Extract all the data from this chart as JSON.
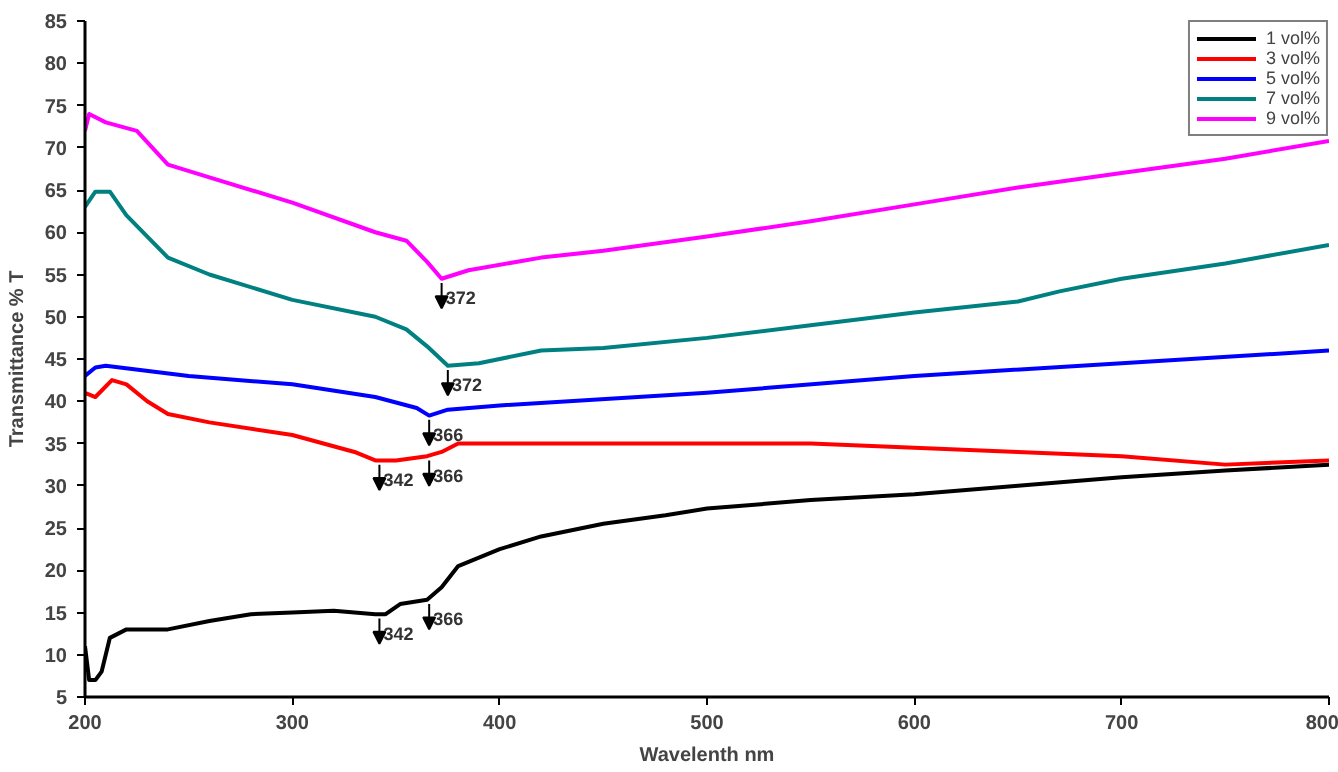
{
  "chart_data": {
    "type": "line",
    "xlabel": "Wavelenth nm",
    "ylabel": "Transmittance % T",
    "xlim": [
      200,
      800
    ],
    "xticks": [
      200,
      300,
      400,
      500,
      600,
      700,
      800
    ],
    "ylim": [
      5,
      85
    ],
    "yticks": [
      5,
      10,
      15,
      20,
      25,
      30,
      35,
      40,
      45,
      50,
      55,
      60,
      65,
      70,
      75,
      80,
      85
    ],
    "grid": false,
    "legend": "top right",
    "line_style": "solid",
    "series": [
      {
        "name": "1 vol%",
        "color": "#000000",
        "x": [
          200,
          202,
          205,
          208,
          212,
          220,
          240,
          260,
          280,
          300,
          320,
          340,
          345,
          352,
          365,
          372,
          380,
          400,
          420,
          450,
          480,
          500,
          550,
          600,
          650,
          700,
          750,
          800
        ],
        "values": [
          11,
          7,
          7,
          8,
          12,
          13,
          13,
          14,
          14.8,
          15,
          15.2,
          14.8,
          14.8,
          16,
          16.5,
          18,
          20.5,
          22.5,
          24,
          25.5,
          26.5,
          27.3,
          28.3,
          29,
          30,
          31,
          31.8,
          32.5
        ]
      },
      {
        "name": "3 vol%",
        "color": "#ff0000",
        "x": [
          200,
          205,
          213,
          220,
          230,
          240,
          260,
          300,
          330,
          340,
          350,
          365,
          372,
          380,
          400,
          500,
          550,
          600,
          650,
          700,
          750,
          800
        ],
        "values": [
          41,
          40.5,
          42.5,
          42,
          40,
          38.5,
          37.5,
          36,
          34,
          33,
          33,
          33.5,
          34,
          35,
          35,
          35,
          35,
          34.5,
          34,
          33.5,
          32.5,
          33
        ]
      },
      {
        "name": "5 vol%",
        "color": "#0000ff",
        "x": [
          200,
          205,
          210,
          250,
          300,
          340,
          360,
          366,
          375,
          400,
          500,
          600,
          700,
          800
        ],
        "values": [
          43,
          44,
          44.2,
          43,
          42,
          40.5,
          39.2,
          38.3,
          39,
          39.5,
          41,
          43,
          44.5,
          46
        ]
      },
      {
        "name": "7 vol%",
        "color": "#008080",
        "x": [
          200,
          205,
          212,
          220,
          240,
          260,
          300,
          340,
          355,
          365,
          375,
          390,
          420,
          450,
          500,
          550,
          600,
          650,
          670,
          700,
          750,
          800
        ],
        "values": [
          63,
          64.8,
          64.8,
          62,
          57,
          55,
          52,
          50,
          48.5,
          46.5,
          44.2,
          44.5,
          46,
          46.3,
          47.5,
          49,
          50.5,
          51.8,
          53,
          54.5,
          56.3,
          58.5
        ]
      },
      {
        "name": "9 vol%",
        "color": "#ff00ff",
        "x": [
          200,
          202,
          210,
          225,
          240,
          260,
          300,
          340,
          355,
          365,
          372,
          385,
          420,
          450,
          500,
          550,
          600,
          650,
          700,
          750,
          800
        ],
        "values": [
          72,
          74,
          73,
          72,
          68,
          66.5,
          63.5,
          60,
          59,
          56.5,
          54.5,
          55.5,
          57,
          57.8,
          59.5,
          61.3,
          63.3,
          65.3,
          67,
          68.7,
          70.8
        ]
      }
    ],
    "annotations": [
      {
        "text": "372",
        "x": 372,
        "y": 54.5
      },
      {
        "text": "372",
        "x": 375,
        "y": 44.2
      },
      {
        "text": "366",
        "x": 366,
        "y": 38.3
      },
      {
        "text": "366",
        "x": 366,
        "y": 33.5
      },
      {
        "text": "342",
        "x": 342,
        "y": 33
      },
      {
        "text": "342",
        "x": 342,
        "y": 14.8
      },
      {
        "text": "366",
        "x": 366,
        "y": 16.5
      }
    ]
  }
}
